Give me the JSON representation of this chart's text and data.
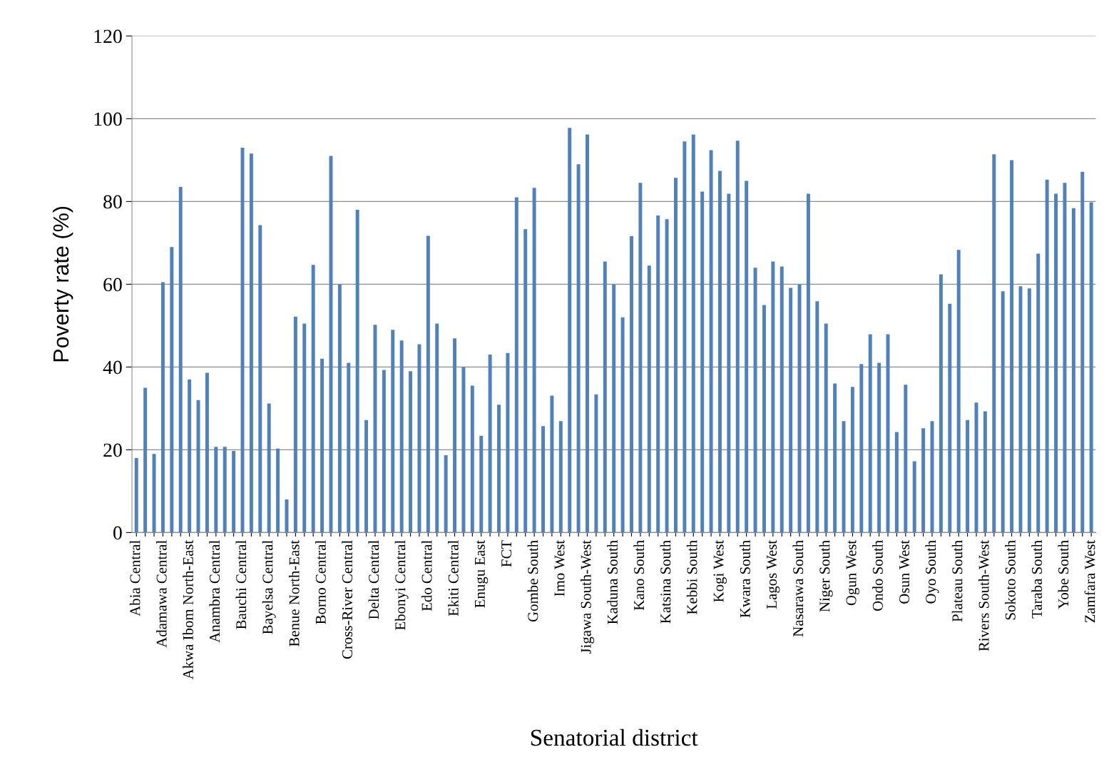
{
  "chart_data": {
    "type": "bar",
    "xlabel": "Senatorial district",
    "ylabel": "Poverty rate (%)",
    "categories": [
      "Abia Central",
      null,
      null,
      "Adamawa Central",
      null,
      null,
      "Akwa Ibom North-East",
      null,
      null,
      "Anambra Central",
      null,
      null,
      "Bauchi Central",
      null,
      null,
      "Bayelsa Central",
      null,
      null,
      "Benue North-East",
      null,
      null,
      "Borno Central",
      null,
      null,
      "Cross-River Central",
      null,
      null,
      "Delta Central",
      null,
      null,
      "Ebonyi Central",
      null,
      null,
      "Edo Central",
      null,
      null,
      "Ekiti Central",
      null,
      null,
      "Enugu East",
      null,
      null,
      "FCT",
      null,
      null,
      "Gombe South",
      null,
      null,
      "Imo West",
      null,
      null,
      "Jigawa South-West",
      null,
      null,
      "Kaduna South",
      null,
      null,
      "Kano South",
      null,
      null,
      "Katsina South",
      null,
      null,
      "Kebbi South",
      null,
      null,
      "Kogi West",
      null,
      null,
      "Kwara South",
      null,
      null,
      "Lagos West",
      null,
      null,
      "Nasarawa South",
      null,
      null,
      "Niger South",
      null,
      null,
      "Ogun West",
      null,
      null,
      "Ondo South",
      null,
      null,
      "Osun West",
      null,
      null,
      "Oyo South",
      null,
      null,
      "Plateau South",
      null,
      null,
      "Rivers South-West",
      null,
      null,
      "Sokoto South",
      null,
      null,
      "Taraba South",
      null,
      null,
      "Yobe South",
      null,
      null,
      "Zamfara West"
    ],
    "values": [
      18,
      35,
      19,
      60.5,
      69,
      83.5,
      37,
      32,
      38.6,
      20.7,
      20.7,
      19.7,
      93,
      91.6,
      74.3,
      31.2,
      20.3,
      8,
      52.2,
      50.5,
      64.7,
      42,
      91,
      60,
      41,
      78,
      27.2,
      50.2,
      39.3,
      49,
      46.4,
      39,
      45.5,
      71.7,
      50.5,
      18.7,
      46.9,
      40,
      35.5,
      23.4,
      43,
      30.9,
      43.4,
      81,
      73.3,
      83.3,
      25.7,
      33.1,
      26.9,
      97.8,
      89,
      96.2,
      33.4,
      65.5,
      60,
      52,
      71.6,
      84.5,
      64.5,
      76.6,
      75.7,
      85.7,
      94.5,
      96.2,
      82.4,
      92.4,
      87.4,
      81.9,
      94.7,
      85,
      64,
      55,
      65.5,
      64.3,
      59.1,
      60,
      81.9,
      55.9,
      50.5,
      36,
      26.9,
      35.2,
      40.7,
      47.9,
      41,
      47.9,
      24.3,
      35.7,
      17.2,
      25.2,
      26.9,
      62.4,
      55.3,
      68.3,
      27.2,
      31.4,
      29.3,
      91.4,
      58.3,
      90,
      59.5,
      59,
      67.4,
      85.3,
      81.9,
      84.5,
      78.4,
      87.2,
      79.8
    ],
    "color": "#4f81bd",
    "ylim": [
      0,
      120
    ],
    "yticks": [
      0,
      20,
      40,
      60,
      80,
      100,
      120
    ],
    "grid": "y"
  }
}
